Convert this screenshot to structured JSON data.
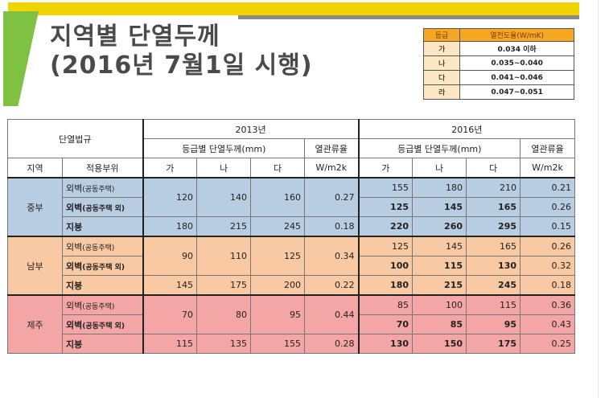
{
  "title": {
    "line1": "지역별 단열두께",
    "line2": "(2016년 7월1일 시행)"
  },
  "legend": {
    "headers": [
      "등급",
      "열전도율(W/mK)"
    ],
    "rows": [
      {
        "grade": "가",
        "value": "0.034 이하"
      },
      {
        "grade": "나",
        "value": "0.035~0.040"
      },
      {
        "grade": "다",
        "value": "0.041~0.046"
      },
      {
        "grade": "라",
        "value": "0.047~0.051"
      }
    ]
  },
  "table": {
    "regulation_label": "단열법규",
    "year_a": "2013년",
    "year_b": "2016년",
    "thickness_label": "등급별 단열두께(mm)",
    "heat_label": "열관류율",
    "region_col": "지역",
    "part_col": "적용부위",
    "grades": [
      "가",
      "나",
      "다"
    ],
    "unit": "W/m2k",
    "regions": [
      {
        "name": "중부",
        "rows": [
          {
            "part": "외벽",
            "note": "(공동주택)",
            "a": [
              "120",
              "140",
              "160"
            ],
            "b": [
              "155",
              "180",
              "210",
              "0.21"
            ]
          },
          {
            "part": "외벽",
            "note": "(공동주택 외)",
            "a": null,
            "b": [
              "125",
              "145",
              "165",
              "0.26"
            ]
          },
          {
            "part": "지붕",
            "note": "",
            "a": [
              "180",
              "215",
              "245",
              "0.18"
            ],
            "b": [
              "220",
              "260",
              "295",
              "0.15"
            ]
          }
        ],
        "a_wall_u": "0.27"
      },
      {
        "name": "남부",
        "rows": [
          {
            "part": "외벽",
            "note": "(공동주택)",
            "a": [
              "90",
              "110",
              "125"
            ],
            "b": [
              "125",
              "145",
              "165",
              "0.26"
            ]
          },
          {
            "part": "외벽",
            "note": "(공동주택 외)",
            "a": null,
            "b": [
              "100",
              "115",
              "130",
              "0.32"
            ]
          },
          {
            "part": "지붕",
            "note": "",
            "a": [
              "145",
              "175",
              "200",
              "0.22"
            ],
            "b": [
              "180",
              "215",
              "245",
              "0.18"
            ]
          }
        ],
        "a_wall_u": "0.34"
      },
      {
        "name": "제주",
        "rows": [
          {
            "part": "외벽",
            "note": "(공동주택)",
            "a": [
              "70",
              "80",
              "95"
            ],
            "b": [
              "85",
              "100",
              "115",
              "0.36"
            ]
          },
          {
            "part": "외벽",
            "note": "(공동주택 외)",
            "a": null,
            "b": [
              "70",
              "85",
              "95",
              "0.43"
            ]
          },
          {
            "part": "지붕",
            "note": "",
            "a": [
              "115",
              "135",
              "155",
              "0.28"
            ],
            "b": [
              "130",
              "150",
              "175",
              "0.25"
            ]
          }
        ],
        "a_wall_u": "0.44"
      }
    ]
  }
}
